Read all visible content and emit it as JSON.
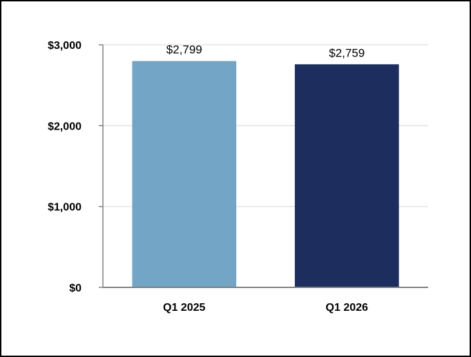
{
  "chart_data": {
    "type": "bar",
    "categories": [
      "Q1 2025",
      "Q1 2026"
    ],
    "values": [
      2799,
      2759
    ],
    "data_labels": [
      "$2,799",
      "$2,759"
    ],
    "colors": [
      "#72A5C6",
      "#1D2D5E"
    ],
    "ylim": [
      0,
      3000
    ],
    "yticks": [
      0,
      1000,
      2000,
      3000
    ],
    "ytick_labels": [
      "$0",
      "$1,000",
      "$2,000",
      "$3,000"
    ],
    "grid": true,
    "grid_color": "#E3E3E3",
    "axis_color": "#808080",
    "title": "",
    "xlabel": "",
    "ylabel": "",
    "legend": "none"
  }
}
